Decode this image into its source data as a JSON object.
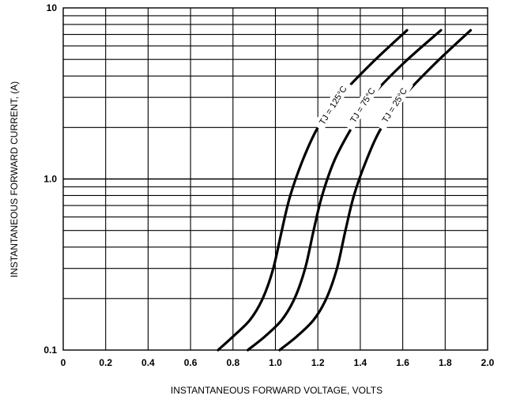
{
  "chart_data": {
    "type": "line",
    "xlabel": "INSTANTANEOUS FORWARD VOLTAGE, VOLTS",
    "ylabel": "INSTANTANEOUS  FORWARD CURRENT, (A)",
    "xlim": [
      0,
      2.0
    ],
    "ylim": [
      0.1,
      10
    ],
    "yscale": "log",
    "grid": true,
    "x_ticks": [
      "0",
      "0.2",
      "0.4",
      "0.6",
      "0.8",
      "1.0",
      "1.2",
      "1.4",
      "1.6",
      "1.8",
      "2.0"
    ],
    "y_ticks": [
      {
        "value": 0.1,
        "label": "0.1"
      },
      {
        "value": 1.0,
        "label": "1.0"
      },
      {
        "value": 10,
        "label": "10"
      }
    ],
    "series": [
      {
        "name": "TJ = 125°C",
        "points": [
          [
            0.73,
            0.1
          ],
          [
            0.8,
            0.12
          ],
          [
            0.88,
            0.15
          ],
          [
            0.94,
            0.2
          ],
          [
            0.99,
            0.3
          ],
          [
            1.03,
            0.5
          ],
          [
            1.07,
            0.8
          ],
          [
            1.13,
            1.3
          ],
          [
            1.2,
            2.0
          ],
          [
            1.3,
            3.0
          ],
          [
            1.45,
            4.7
          ],
          [
            1.62,
            7.4
          ]
        ]
      },
      {
        "name": "TJ = 75°C",
        "points": [
          [
            0.87,
            0.1
          ],
          [
            0.95,
            0.12
          ],
          [
            1.03,
            0.15
          ],
          [
            1.09,
            0.2
          ],
          [
            1.14,
            0.3
          ],
          [
            1.18,
            0.5
          ],
          [
            1.22,
            0.8
          ],
          [
            1.28,
            1.3
          ],
          [
            1.36,
            2.0
          ],
          [
            1.45,
            3.0
          ],
          [
            1.6,
            4.7
          ],
          [
            1.78,
            7.4
          ]
        ]
      },
      {
        "name": "TJ = 25°C",
        "points": [
          [
            1.02,
            0.1
          ],
          [
            1.1,
            0.12
          ],
          [
            1.18,
            0.15
          ],
          [
            1.24,
            0.2
          ],
          [
            1.29,
            0.3
          ],
          [
            1.33,
            0.5
          ],
          [
            1.37,
            0.8
          ],
          [
            1.43,
            1.3
          ],
          [
            1.5,
            2.0
          ],
          [
            1.6,
            3.0
          ],
          [
            1.75,
            4.7
          ],
          [
            1.92,
            7.4
          ]
        ]
      }
    ]
  }
}
